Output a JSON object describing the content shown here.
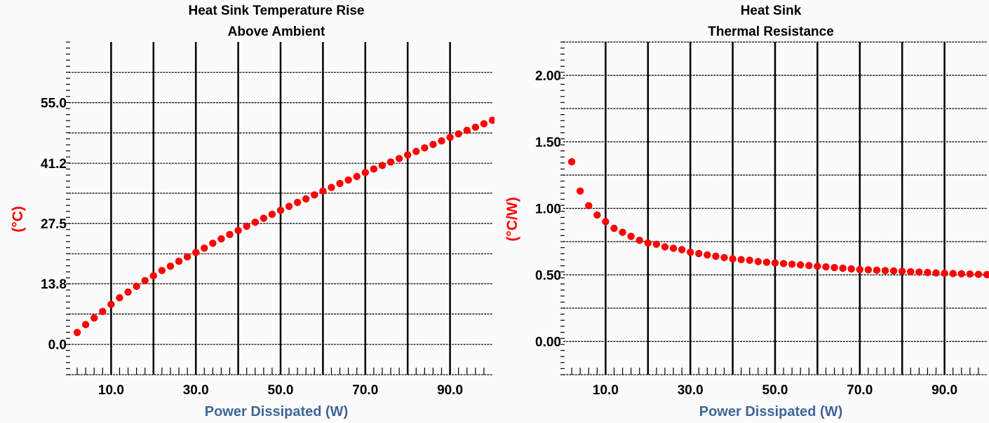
{
  "chart_data": [
    {
      "type": "scatter",
      "title_lines": [
        "Heat Sink Temperature Rise",
        "Above Ambient"
      ],
      "xlabel": "Power Dissipated (W)",
      "ylabel": "(°C)",
      "xlim": [
        0,
        100
      ],
      "ylim": [
        -6.9,
        68.8
      ],
      "x_ticks": [
        10,
        30,
        50,
        70,
        90
      ],
      "x_tick_labels": [
        "10.0",
        "30.0",
        "50.0",
        "70.0",
        "90.0"
      ],
      "y_ticks": [
        0,
        13.8,
        27.5,
        41.2,
        55.0
      ],
      "y_tick_labels": [
        "0.0",
        "13.8",
        "27.5",
        "41.2",
        "55.0"
      ],
      "y_dashed_grid": [
        -6.9,
        6.9,
        20.6,
        34.4,
        48.1,
        61.9
      ],
      "marker_color": "#ff0000",
      "x": [
        2,
        4,
        6,
        8,
        10,
        12,
        14,
        16,
        18,
        20,
        22,
        24,
        26,
        28,
        30,
        32,
        34,
        36,
        38,
        40,
        42,
        44,
        46,
        48,
        50,
        52,
        54,
        56,
        58,
        60,
        62,
        64,
        66,
        68,
        70,
        72,
        74,
        76,
        78,
        80,
        82,
        84,
        86,
        88,
        90,
        92,
        94,
        96,
        98,
        100
      ],
      "y": [
        2.7,
        4.5,
        6.0,
        7.5,
        9.1,
        10.6,
        11.9,
        13.2,
        14.5,
        15.6,
        16.8,
        17.8,
        18.9,
        19.9,
        20.9,
        21.9,
        23.0,
        24.0,
        25.0,
        25.9,
        26.9,
        27.8,
        28.7,
        29.6,
        30.5,
        31.4,
        32.3,
        33.1,
        34.0,
        34.9,
        35.7,
        36.6,
        37.4,
        38.2,
        39.1,
        39.9,
        40.7,
        41.5,
        42.3,
        43.1,
        43.9,
        44.7,
        45.5,
        46.3,
        47.1,
        47.9,
        48.7,
        49.4,
        50.2,
        51.0
      ]
    },
    {
      "type": "scatter",
      "title_lines": [
        "Heat Sink",
        "Thermal Resistance"
      ],
      "xlabel": "Power Dissipated (W)",
      "ylabel": "(°C/W)",
      "xlim": [
        0,
        100
      ],
      "ylim": [
        -0.25,
        2.25
      ],
      "x_ticks": [
        10,
        30,
        50,
        70,
        90
      ],
      "x_tick_labels": [
        "10.0",
        "30.0",
        "50.0",
        "70.0",
        "90.0"
      ],
      "y_ticks": [
        0,
        0.5,
        1.0,
        1.5,
        2.0
      ],
      "y_tick_labels": [
        "0.00",
        "0.50",
        "1.00",
        "1.50",
        "2.00"
      ],
      "y_dashed_grid": [
        -0.25,
        0.25,
        0.75,
        1.25,
        1.75,
        2.25
      ],
      "marker_color": "#ff0000",
      "x": [
        2,
        4,
        6,
        8,
        10,
        12,
        14,
        16,
        18,
        20,
        22,
        24,
        26,
        28,
        30,
        32,
        34,
        36,
        38,
        40,
        42,
        44,
        46,
        48,
        50,
        52,
        54,
        56,
        58,
        60,
        62,
        64,
        66,
        68,
        70,
        72,
        74,
        76,
        78,
        80,
        82,
        84,
        86,
        88,
        90,
        92,
        94,
        96,
        98,
        100
      ],
      "y": [
        1.35,
        1.13,
        1.02,
        0.95,
        0.9,
        0.85,
        0.82,
        0.79,
        0.76,
        0.74,
        0.73,
        0.71,
        0.7,
        0.69,
        0.67,
        0.66,
        0.65,
        0.64,
        0.63,
        0.62,
        0.615,
        0.61,
        0.6,
        0.595,
        0.59,
        0.585,
        0.58,
        0.575,
        0.57,
        0.565,
        0.56,
        0.555,
        0.55,
        0.545,
        0.54,
        0.538,
        0.535,
        0.532,
        0.53,
        0.527,
        0.524,
        0.521,
        0.518,
        0.515,
        0.512,
        0.51,
        0.508,
        0.506,
        0.504,
        0.502
      ]
    }
  ]
}
